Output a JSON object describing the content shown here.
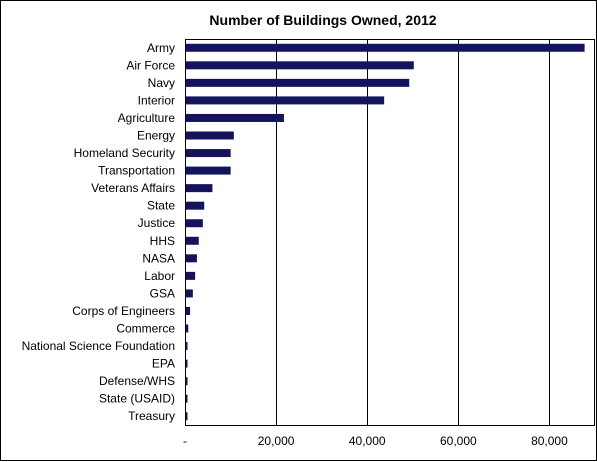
{
  "chart_data": {
    "type": "bar",
    "orientation": "horizontal",
    "title": "Number of Buildings  Owned, 2012",
    "xlabel": "",
    "ylabel": "",
    "categories": [
      "Army",
      "Air Force",
      "Navy",
      "Interior",
      "Agriculture",
      "Energy",
      "Homeland Security",
      "Transportation",
      "Veterans Affairs",
      "State",
      "Justice",
      "HHS",
      "NASA",
      "Labor",
      "GSA",
      "Corps of Engineers",
      "Commerce",
      "National Science Foundation",
      "EPA",
      "Defense/WHS",
      "State (USAID)",
      "Treasury"
    ],
    "values": [
      87500,
      50000,
      49000,
      43500,
      21500,
      10500,
      9800,
      9800,
      5800,
      4000,
      3700,
      2800,
      2400,
      2000,
      1500,
      900,
      500,
      300,
      250,
      200,
      150,
      100
    ],
    "xlim": [
      0,
      90000
    ],
    "xticks": [
      0,
      20000,
      40000,
      60000,
      80000
    ],
    "xtick_labels": [
      "-",
      "20,000",
      "40,000",
      "60,000",
      "80,000"
    ],
    "grid": "vertical",
    "legend": "none",
    "bar_color": "#14145e"
  }
}
